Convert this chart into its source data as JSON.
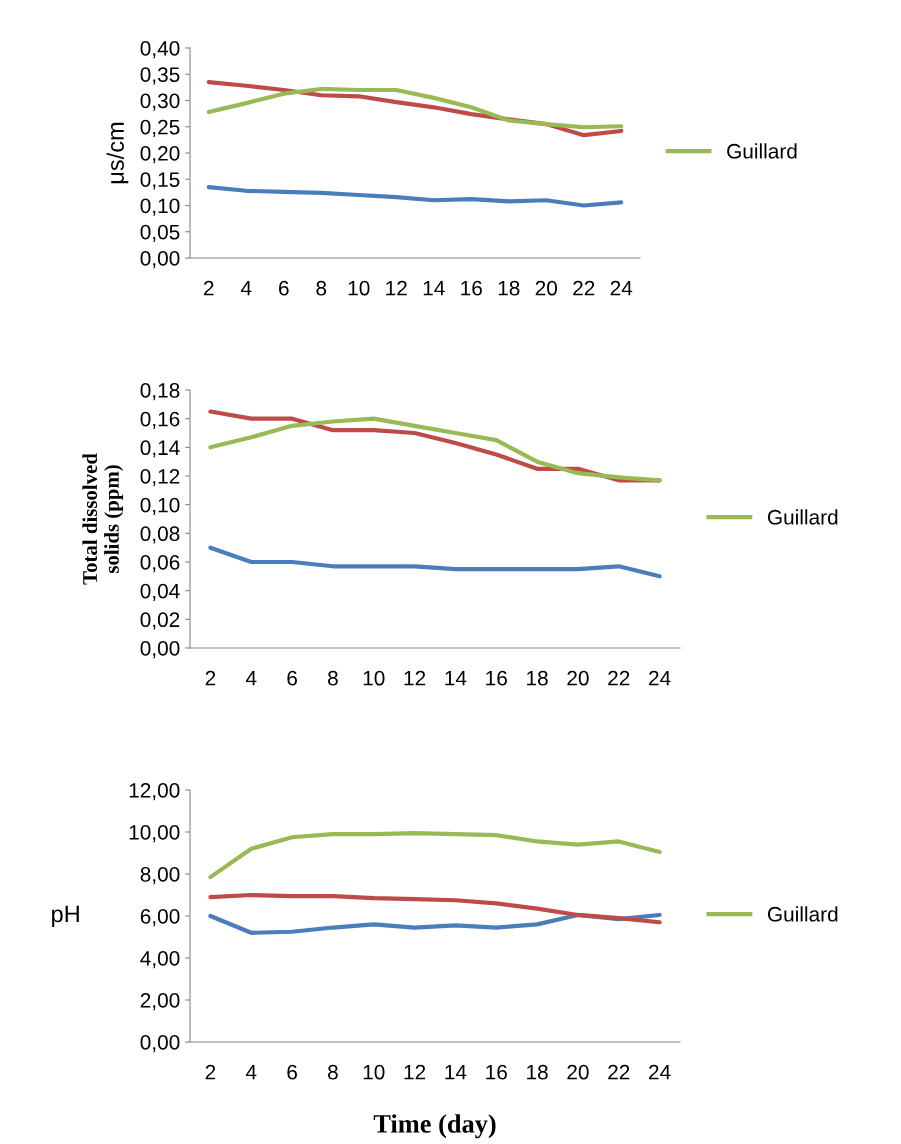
{
  "chart_data": [
    {
      "type": "line",
      "ylabel": "μs/cm",
      "categories": [
        "2",
        "4",
        "6",
        "8",
        "10",
        "12",
        "14",
        "16",
        "18",
        "20",
        "22",
        "24"
      ],
      "series": [
        {
          "color": "#4a7ebb",
          "values": [
            0.135,
            0.128,
            0.126,
            0.124,
            0.12,
            0.116,
            0.11,
            0.112,
            0.108,
            0.11,
            0.1,
            0.106
          ]
        },
        {
          "color": "#be4b48",
          "values": [
            0.335,
            0.328,
            0.32,
            0.31,
            0.308,
            0.297,
            0.287,
            0.274,
            0.264,
            0.255,
            0.234,
            0.242
          ]
        },
        {
          "name": "Guillard",
          "color": "#98b954",
          "values": [
            0.278,
            0.295,
            0.313,
            0.322,
            0.32,
            0.32,
            0.305,
            0.287,
            0.262,
            0.255,
            0.249,
            0.251
          ]
        }
      ],
      "ylim": [
        0,
        0.4
      ],
      "yticks": [
        {
          "value": 0,
          "label": "0,00"
        },
        {
          "value": 0.05,
          "label": "0,05"
        },
        {
          "value": 0.1,
          "label": "0,10"
        },
        {
          "value": 0.15,
          "label": "0,15"
        },
        {
          "value": 0.2,
          "label": "0,20"
        },
        {
          "value": 0.25,
          "label": "0,25"
        },
        {
          "value": 0.3,
          "label": "0,30"
        },
        {
          "value": 0.35,
          "label": "0,35"
        },
        {
          "value": 0.4,
          "label": "0,40"
        }
      ],
      "grid": false,
      "legend": "right",
      "marker": "none",
      "line_style": "solid"
    },
    {
      "type": "line",
      "ylabel": "Total dissolved\nsolids (ppm)",
      "categories": [
        "2",
        "4",
        "6",
        "8",
        "10",
        "12",
        "14",
        "16",
        "18",
        "20",
        "22",
        "24"
      ],
      "series": [
        {
          "color": "#4a7ebb",
          "values": [
            0.07,
            0.06,
            0.06,
            0.057,
            0.057,
            0.057,
            0.055,
            0.055,
            0.055,
            0.055,
            0.057,
            0.05
          ]
        },
        {
          "color": "#be4b48",
          "values": [
            0.165,
            0.16,
            0.16,
            0.152,
            0.152,
            0.15,
            0.143,
            0.135,
            0.125,
            0.125,
            0.117,
            0.117
          ]
        },
        {
          "name": "Guillard",
          "color": "#98b954",
          "values": [
            0.14,
            0.147,
            0.155,
            0.158,
            0.16,
            0.155,
            0.15,
            0.145,
            0.13,
            0.122,
            0.119,
            0.117
          ]
        }
      ],
      "ylim": [
        0,
        0.18
      ],
      "yticks": [
        {
          "value": 0,
          "label": "0,00"
        },
        {
          "value": 0.02,
          "label": "0,02"
        },
        {
          "value": 0.04,
          "label": "0,04"
        },
        {
          "value": 0.06,
          "label": "0,06"
        },
        {
          "value": 0.08,
          "label": "0,08"
        },
        {
          "value": 0.1,
          "label": "0,10"
        },
        {
          "value": 0.12,
          "label": "0,12"
        },
        {
          "value": 0.14,
          "label": "0,14"
        },
        {
          "value": 0.16,
          "label": "0,16"
        },
        {
          "value": 0.18,
          "label": "0,18"
        }
      ],
      "grid": false,
      "legend": "right",
      "marker": "none",
      "line_style": "solid"
    },
    {
      "type": "line",
      "ylabel": "pH",
      "xlabel": "Time (day)",
      "categories": [
        "2",
        "4",
        "6",
        "8",
        "10",
        "12",
        "14",
        "16",
        "18",
        "20",
        "22",
        "24"
      ],
      "series": [
        {
          "color": "#4a7ebb",
          "values": [
            6.0,
            5.2,
            5.25,
            5.45,
            5.6,
            5.45,
            5.55,
            5.45,
            5.6,
            6.05,
            5.85,
            6.05
          ]
        },
        {
          "color": "#be4b48",
          "values": [
            6.9,
            7.0,
            6.95,
            6.95,
            6.85,
            6.8,
            6.75,
            6.6,
            6.35,
            6.05,
            5.9,
            5.7
          ]
        },
        {
          "name": "Guillard",
          "color": "#98b954",
          "values": [
            7.85,
            9.2,
            9.75,
            9.9,
            9.9,
            9.95,
            9.9,
            9.85,
            9.55,
            9.4,
            9.55,
            9.05
          ]
        }
      ],
      "ylim": [
        0,
        12
      ],
      "yticks": [
        {
          "value": 0,
          "label": "0,00"
        },
        {
          "value": 2,
          "label": "2,00"
        },
        {
          "value": 4,
          "label": "4,00"
        },
        {
          "value": 6,
          "label": "6,00"
        },
        {
          "value": 8,
          "label": "8,00"
        },
        {
          "value": 10,
          "label": "10,00"
        },
        {
          "value": 12,
          "label": "12,00"
        }
      ],
      "grid": false,
      "legend": "right",
      "marker": "none",
      "line_style": "solid"
    }
  ]
}
